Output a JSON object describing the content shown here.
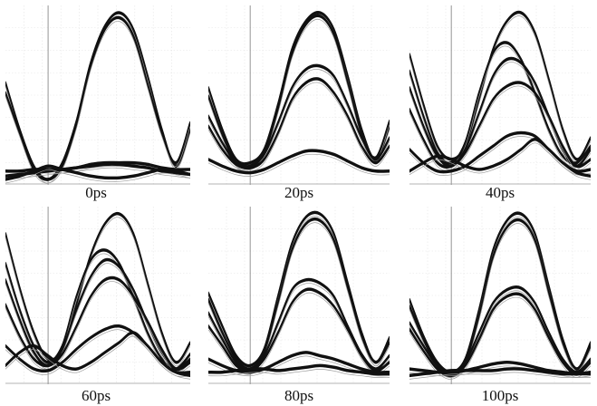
{
  "chart_data": [
    {
      "type": "line",
      "label": "0ps",
      "x": [
        -0.6,
        -0.4,
        -0.2,
        0.0,
        0.2,
        0.4,
        0.6,
        0.8,
        1.0,
        1.2,
        1.4,
        1.6,
        1.8,
        2.0
      ],
      "series": [
        {
          "values": [
            0.58,
            0.3,
            0.08,
            0.0,
            0.1,
            0.35,
            0.7,
            0.92,
            1.0,
            0.9,
            0.62,
            0.3,
            0.08,
            0.3
          ]
        },
        {
          "values": [
            0.52,
            0.28,
            0.06,
            0.0,
            0.08,
            0.33,
            0.68,
            0.9,
            0.97,
            0.86,
            0.57,
            0.28,
            0.1,
            0.34
          ]
        },
        {
          "values": [
            0.05,
            0.05,
            0.06,
            0.06,
            0.06,
            0.07,
            0.09,
            0.1,
            0.1,
            0.1,
            0.09,
            0.07,
            0.06,
            0.06
          ]
        },
        {
          "values": [
            0.02,
            0.03,
            0.04,
            0.05,
            0.06,
            0.07,
            0.08,
            0.09,
            0.09,
            0.08,
            0.07,
            0.05,
            0.04,
            0.03
          ]
        },
        {
          "values": [
            0.0,
            0.02,
            0.05,
            0.08,
            0.06,
            0.04,
            0.02,
            0.01,
            0.01,
            0.02,
            0.04,
            0.06,
            0.05,
            0.03
          ]
        }
      ]
    },
    {
      "type": "line",
      "label": "20ps",
      "x": [
        -0.6,
        -0.4,
        -0.2,
        0.0,
        0.2,
        0.4,
        0.6,
        0.8,
        1.0,
        1.2,
        1.4,
        1.6,
        1.8,
        2.0
      ],
      "series": [
        {
          "values": [
            0.55,
            0.3,
            0.12,
            0.1,
            0.18,
            0.45,
            0.78,
            0.95,
            1.0,
            0.9,
            0.62,
            0.3,
            0.12,
            0.32
          ]
        },
        {
          "values": [
            0.5,
            0.27,
            0.1,
            0.08,
            0.16,
            0.42,
            0.75,
            0.93,
            0.98,
            0.87,
            0.58,
            0.27,
            0.13,
            0.35
          ]
        },
        {
          "values": [
            0.38,
            0.22,
            0.1,
            0.08,
            0.15,
            0.34,
            0.55,
            0.66,
            0.68,
            0.62,
            0.45,
            0.25,
            0.12,
            0.25
          ]
        },
        {
          "values": [
            0.32,
            0.18,
            0.09,
            0.07,
            0.12,
            0.28,
            0.48,
            0.58,
            0.6,
            0.52,
            0.38,
            0.2,
            0.1,
            0.2
          ]
        },
        {
          "values": [
            0.12,
            0.08,
            0.05,
            0.04,
            0.06,
            0.1,
            0.14,
            0.17,
            0.17,
            0.15,
            0.11,
            0.07,
            0.05,
            0.05
          ]
        }
      ]
    },
    {
      "type": "line",
      "label": "40ps",
      "x": [
        -0.6,
        -0.4,
        -0.2,
        0.0,
        0.2,
        0.4,
        0.6,
        0.8,
        1.0,
        1.2,
        1.4,
        1.6,
        1.8,
        2.0
      ],
      "series": [
        {
          "values": [
            0.75,
            0.45,
            0.2,
            0.12,
            0.2,
            0.48,
            0.78,
            0.95,
            1.0,
            0.88,
            0.6,
            0.3,
            0.12,
            0.25
          ]
        },
        {
          "values": [
            0.65,
            0.38,
            0.16,
            0.1,
            0.22,
            0.52,
            0.76,
            0.82,
            0.72,
            0.52,
            0.3,
            0.14,
            0.1,
            0.2
          ]
        },
        {
          "values": [
            0.55,
            0.32,
            0.14,
            0.08,
            0.18,
            0.4,
            0.62,
            0.72,
            0.7,
            0.58,
            0.38,
            0.18,
            0.08,
            0.18
          ]
        },
        {
          "values": [
            0.42,
            0.24,
            0.1,
            0.08,
            0.16,
            0.32,
            0.48,
            0.56,
            0.58,
            0.52,
            0.38,
            0.2,
            0.08,
            0.12
          ]
        },
        {
          "values": [
            0.18,
            0.1,
            0.05,
            0.05,
            0.08,
            0.14,
            0.2,
            0.26,
            0.28,
            0.26,
            0.18,
            0.1,
            0.05,
            0.06
          ]
        },
        {
          "values": [
            0.05,
            0.1,
            0.14,
            0.12,
            0.08,
            0.06,
            0.08,
            0.12,
            0.18,
            0.24,
            0.18,
            0.1,
            0.04,
            0.02
          ]
        }
      ]
    },
    {
      "type": "line",
      "label": "60ps",
      "x": [
        -0.6,
        -0.4,
        -0.2,
        0.0,
        0.2,
        0.4,
        0.6,
        0.8,
        1.0,
        1.2,
        1.4,
        1.6,
        1.8,
        2.0
      ],
      "series": [
        {
          "values": [
            0.88,
            0.55,
            0.28,
            0.12,
            0.18,
            0.45,
            0.75,
            0.94,
            1.0,
            0.88,
            0.58,
            0.28,
            0.1,
            0.22
          ]
        },
        {
          "values": [
            0.7,
            0.42,
            0.2,
            0.1,
            0.2,
            0.5,
            0.72,
            0.78,
            0.7,
            0.5,
            0.28,
            0.12,
            0.06,
            0.15
          ]
        },
        {
          "values": [
            0.6,
            0.36,
            0.16,
            0.08,
            0.18,
            0.42,
            0.62,
            0.72,
            0.68,
            0.54,
            0.34,
            0.16,
            0.06,
            0.12
          ]
        },
        {
          "values": [
            0.45,
            0.26,
            0.12,
            0.08,
            0.15,
            0.32,
            0.5,
            0.6,
            0.6,
            0.5,
            0.35,
            0.18,
            0.06,
            0.1
          ]
        },
        {
          "values": [
            0.2,
            0.12,
            0.06,
            0.05,
            0.1,
            0.18,
            0.25,
            0.3,
            0.32,
            0.28,
            0.2,
            0.1,
            0.04,
            0.04
          ]
        },
        {
          "values": [
            0.08,
            0.16,
            0.2,
            0.14,
            0.08,
            0.06,
            0.1,
            0.16,
            0.22,
            0.28,
            0.2,
            0.1,
            0.04,
            0.02
          ]
        }
      ]
    },
    {
      "type": "line",
      "label": "80ps",
      "x": [
        -0.6,
        -0.4,
        -0.2,
        0.0,
        0.2,
        0.4,
        0.6,
        0.8,
        1.0,
        1.2,
        1.4,
        1.6,
        1.8,
        2.0
      ],
      "series": [
        {
          "values": [
            0.52,
            0.32,
            0.14,
            0.08,
            0.18,
            0.5,
            0.82,
            0.98,
            1.0,
            0.88,
            0.58,
            0.28,
            0.1,
            0.25
          ]
        },
        {
          "values": [
            0.48,
            0.28,
            0.12,
            0.06,
            0.16,
            0.46,
            0.78,
            0.94,
            0.96,
            0.84,
            0.55,
            0.26,
            0.1,
            0.22
          ]
        },
        {
          "values": [
            0.4,
            0.24,
            0.1,
            0.06,
            0.14,
            0.34,
            0.54,
            0.6,
            0.58,
            0.5,
            0.32,
            0.15,
            0.06,
            0.14
          ]
        },
        {
          "values": [
            0.32,
            0.2,
            0.08,
            0.05,
            0.12,
            0.28,
            0.46,
            0.54,
            0.52,
            0.44,
            0.3,
            0.14,
            0.05,
            0.1
          ]
        },
        {
          "values": [
            0.12,
            0.08,
            0.05,
            0.04,
            0.06,
            0.1,
            0.14,
            0.16,
            0.14,
            0.12,
            0.09,
            0.06,
            0.04,
            0.04
          ]
        },
        {
          "values": [
            0.04,
            0.04,
            0.05,
            0.06,
            0.06,
            0.05,
            0.06,
            0.07,
            0.08,
            0.07,
            0.05,
            0.04,
            0.03,
            0.03
          ]
        }
      ]
    },
    {
      "type": "line",
      "label": "100ps",
      "x": [
        -0.6,
        -0.4,
        -0.2,
        0.0,
        0.2,
        0.4,
        0.6,
        0.8,
        1.0,
        1.2,
        1.4,
        1.6,
        1.8,
        2.0
      ],
      "series": [
        {
          "values": [
            0.48,
            0.26,
            0.1,
            0.04,
            0.12,
            0.42,
            0.78,
            0.96,
            1.0,
            0.88,
            0.56,
            0.24,
            0.06,
            0.22
          ]
        },
        {
          "values": [
            0.44,
            0.24,
            0.08,
            0.03,
            0.1,
            0.38,
            0.74,
            0.92,
            0.96,
            0.84,
            0.52,
            0.22,
            0.06,
            0.2
          ]
        },
        {
          "values": [
            0.34,
            0.2,
            0.08,
            0.03,
            0.1,
            0.28,
            0.46,
            0.54,
            0.55,
            0.46,
            0.28,
            0.12,
            0.04,
            0.12
          ]
        },
        {
          "values": [
            0.3,
            0.17,
            0.06,
            0.02,
            0.08,
            0.24,
            0.42,
            0.5,
            0.51,
            0.42,
            0.25,
            0.1,
            0.03,
            0.1
          ]
        },
        {
          "values": [
            0.06,
            0.05,
            0.04,
            0.04,
            0.05,
            0.07,
            0.09,
            0.1,
            0.09,
            0.07,
            0.05,
            0.04,
            0.03,
            0.04
          ]
        },
        {
          "values": [
            0.02,
            0.03,
            0.04,
            0.05,
            0.05,
            0.05,
            0.05,
            0.06,
            0.06,
            0.05,
            0.04,
            0.03,
            0.03,
            0.03
          ]
        }
      ]
    }
  ]
}
